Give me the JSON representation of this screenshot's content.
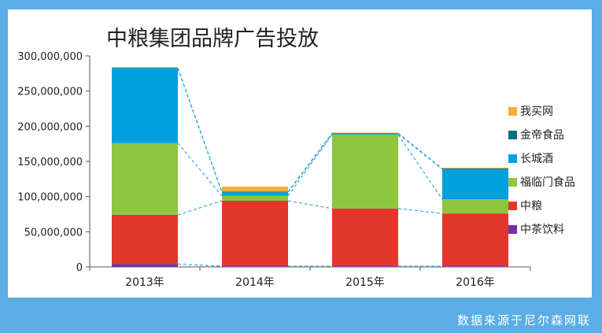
{
  "chart_data": {
    "type": "bar",
    "stacked": true,
    "title": "中粮集团品牌广告投放",
    "xlabel": "",
    "ylabel": "",
    "categories": [
      "2013年",
      "2014年",
      "2015年",
      "2016年"
    ],
    "ylim": [
      0,
      300000000
    ],
    "yticks": [
      0,
      50000000,
      100000000,
      150000000,
      200000000,
      250000000,
      300000000
    ],
    "ytick_labels": [
      "0",
      "50,000,000",
      "100,000,000",
      "150,000,000",
      "200,000,000",
      "250,000,000",
      "300,000,000"
    ],
    "legend_position": "right",
    "connector_lines": true,
    "series": [
      {
        "name": "中茶饮料",
        "color": "#7030a0",
        "values": [
          4000000,
          1000000,
          1000000,
          1000000
        ]
      },
      {
        "name": "中粮",
        "color": "#e0382a",
        "values": [
          70000000,
          93000000,
          82000000,
          75000000
        ]
      },
      {
        "name": "福临门食品",
        "color": "#8dc63f",
        "values": [
          102000000,
          7000000,
          105000000,
          20000000
        ]
      },
      {
        "name": "长城酒",
        "color": "#00a0dc",
        "values": [
          106000000,
          5000000,
          1000000,
          43000000
        ]
      },
      {
        "name": "金帝食品",
        "color": "#006f7a",
        "values": [
          1000000,
          1000000,
          1000000,
          1000000
        ]
      },
      {
        "name": "我买网",
        "color": "#f7b032",
        "values": [
          1000000,
          7000000,
          1000000,
          1000000
        ]
      }
    ]
  },
  "footer": {
    "source": "数据来源于尼尔森网联"
  }
}
